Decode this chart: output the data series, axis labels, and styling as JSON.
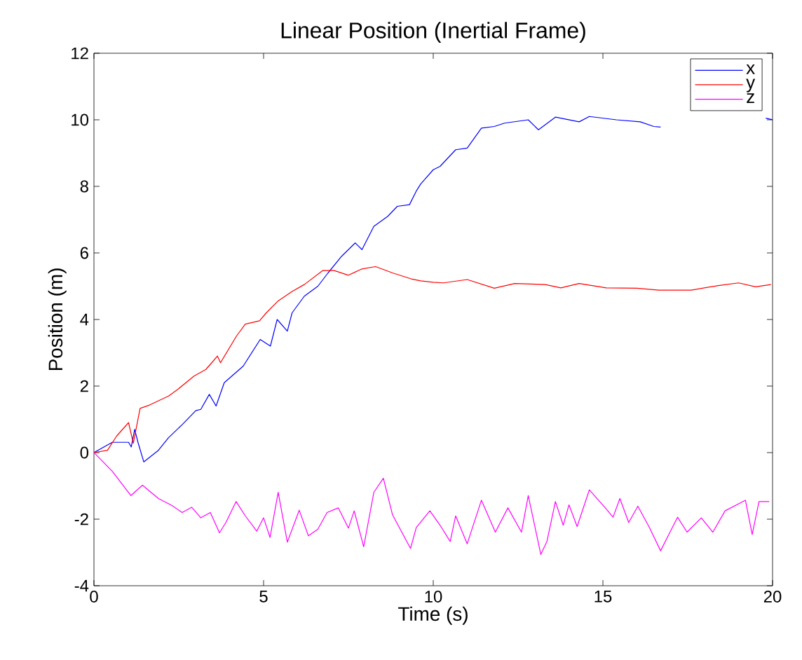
{
  "chart_data": {
    "type": "line",
    "title": "Linear Position (Inertial Frame)",
    "xlabel": "Time (s)",
    "ylabel": "Position (m)",
    "xlim": [
      0,
      20
    ],
    "ylim": [
      -4,
      12
    ],
    "xticks": [
      0,
      5,
      10,
      15,
      20
    ],
    "yticks": [
      -4,
      -2,
      0,
      2,
      4,
      6,
      8,
      10,
      12
    ],
    "grid": false,
    "legend": "top right",
    "marker": "none",
    "line_style": "solid",
    "series": [
      {
        "name": "x",
        "color": "#0000ff",
        "x": [
          0,
          0.54,
          1.02,
          1.1,
          1.2,
          1.3,
          1.47,
          1.9,
          2.2,
          2.6,
          3.0,
          3.15,
          3.4,
          3.6,
          3.84,
          4.4,
          4.9,
          5.2,
          5.4,
          5.7,
          5.84,
          6.2,
          6.6,
          6.9,
          7.3,
          7.7,
          7.9,
          8.25,
          8.66,
          8.94,
          9.3,
          9.5,
          9.63,
          10.0,
          10.2,
          10.66,
          11.0,
          11.42,
          11.8,
          12.1,
          12.8,
          13.1,
          13.6,
          14.3,
          14.6,
          15.4,
          16.1,
          16.5,
          16.7,
          17.5,
          18.5,
          19.5,
          19.8,
          20
        ],
        "values": [
          0,
          0.31,
          0.31,
          0.17,
          0.7,
          0.3,
          -0.28,
          0.07,
          0.45,
          0.84,
          1.26,
          1.3,
          1.75,
          1.4,
          2.1,
          2.6,
          3.4,
          3.2,
          4.0,
          3.65,
          4.2,
          4.7,
          5.0,
          5.4,
          5.9,
          6.3,
          6.1,
          6.8,
          7.1,
          7.4,
          7.45,
          7.86,
          8.07,
          8.5,
          8.6,
          9.1,
          9.15,
          9.75,
          9.8,
          9.9,
          10.0,
          9.7,
          10.08,
          9.94,
          10.1,
          10.0,
          9.94,
          9.8,
          9.78,
          null,
          null,
          null,
          10.05,
          10.0
        ]
      },
      {
        "name": "y",
        "color": "#ff0000",
        "x": [
          0,
          0.4,
          0.67,
          1.02,
          1.16,
          1.36,
          1.64,
          2.2,
          2.47,
          2.95,
          3.3,
          3.64,
          3.73,
          4.2,
          4.46,
          4.88,
          5.08,
          5.43,
          5.84,
          6.2,
          6.74,
          7.08,
          7.5,
          7.9,
          8.3,
          8.8,
          9.35,
          9.63,
          10.0,
          10.3,
          11.0,
          11.8,
          12.4,
          13.3,
          13.76,
          14.3,
          15.1,
          16.0,
          16.65,
          17.6,
          18.4,
          19.0,
          19.5,
          19.95
        ],
        "values": [
          0,
          0.07,
          0.5,
          0.9,
          0.28,
          1.33,
          1.43,
          1.7,
          1.9,
          2.3,
          2.5,
          2.9,
          2.7,
          3.5,
          3.86,
          3.96,
          4.2,
          4.56,
          4.84,
          5.05,
          5.47,
          5.47,
          5.33,
          5.52,
          5.59,
          5.4,
          5.22,
          5.16,
          5.12,
          5.1,
          5.2,
          4.94,
          5.08,
          5.05,
          4.95,
          5.08,
          4.95,
          4.94,
          4.88,
          4.88,
          5.02,
          5.1,
          4.98,
          5.05
        ]
      },
      {
        "name": "z",
        "color": "#ff00ff",
        "x": [
          0,
          0.54,
          1.09,
          1.43,
          1.9,
          2.3,
          2.6,
          2.88,
          3.15,
          3.43,
          3.7,
          3.9,
          4.19,
          4.46,
          4.8,
          5.0,
          5.19,
          5.43,
          5.7,
          6.05,
          6.32,
          6.6,
          6.87,
          7.2,
          7.5,
          7.67,
          7.95,
          8.25,
          8.53,
          8.8,
          9.33,
          9.5,
          9.9,
          10.2,
          10.5,
          10.66,
          11.0,
          11.42,
          11.83,
          12.2,
          12.6,
          12.8,
          13.17,
          13.35,
          13.6,
          13.83,
          14.0,
          14.24,
          14.6,
          15.07,
          15.3,
          15.5,
          15.76,
          16.03,
          16.38,
          16.7,
          17.2,
          17.48,
          17.9,
          18.24,
          18.6,
          19.2,
          19.4,
          19.6,
          19.9
        ],
        "values": [
          0,
          -0.56,
          -1.29,
          -0.98,
          -1.38,
          -1.59,
          -1.8,
          -1.64,
          -1.96,
          -1.8,
          -2.41,
          -2.08,
          -1.47,
          -1.9,
          -2.36,
          -1.96,
          -2.55,
          -1.19,
          -2.69,
          -1.73,
          -2.5,
          -2.3,
          -1.8,
          -1.66,
          -2.27,
          -1.75,
          -2.83,
          -1.19,
          -0.77,
          -1.87,
          -2.88,
          -2.25,
          -1.75,
          -2.18,
          -2.67,
          -1.9,
          -2.74,
          -1.43,
          -2.39,
          -1.66,
          -2.39,
          -1.29,
          -3.06,
          -2.67,
          -1.47,
          -2.18,
          -1.57,
          -2.22,
          -1.12,
          -1.66,
          -1.94,
          -1.38,
          -2.1,
          -1.61,
          -2.27,
          -2.95,
          -1.94,
          -2.39,
          -1.96,
          -2.39,
          -1.75,
          -1.43,
          -2.46,
          -1.47,
          -1.47
        ]
      }
    ]
  }
}
